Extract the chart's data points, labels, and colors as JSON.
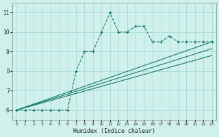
{
  "xlabel": "Humidex (Indice chaleur)",
  "ylabel": "",
  "bg_color": "#cff0eb",
  "grid_color": "#a8ddd8",
  "line_color": "#1a7a6e",
  "xlim": [
    -0.5,
    23.5
  ],
  "ylim": [
    5.5,
    11.5
  ],
  "yticks": [
    6,
    7,
    8,
    9,
    10,
    11
  ],
  "xticks": [
    0,
    1,
    2,
    3,
    4,
    5,
    6,
    7,
    8,
    9,
    10,
    11,
    12,
    13,
    14,
    15,
    16,
    17,
    18,
    19,
    20,
    21,
    22,
    23
  ],
  "main_x": [
    0,
    1,
    2,
    3,
    4,
    5,
    6,
    7,
    8,
    9,
    10,
    11,
    12,
    13,
    14,
    15,
    16,
    17,
    18,
    19,
    20,
    21,
    22,
    23
  ],
  "main_y": [
    6,
    6,
    6,
    6,
    6,
    6,
    6,
    8,
    9,
    9,
    10,
    11,
    10,
    10,
    10.3,
    10.3,
    9.5,
    9.5,
    9.8,
    9.5,
    9.5,
    9.5,
    9.5,
    9.5
  ],
  "line1_x": [
    0,
    23
  ],
  "line1_y": [
    6,
    9.5
  ],
  "line2_x": [
    0,
    23
  ],
  "line2_y": [
    6,
    8.8
  ],
  "line3_x": [
    0,
    23
  ],
  "line3_y": [
    6,
    9.15
  ]
}
